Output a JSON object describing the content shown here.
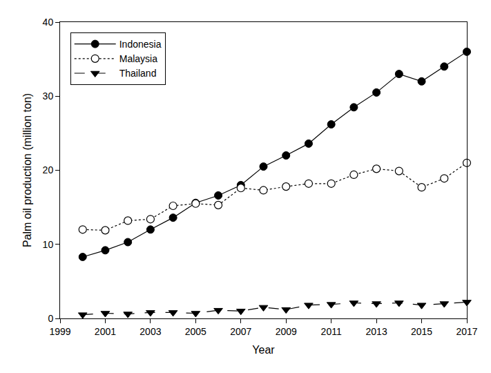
{
  "chart_data": {
    "type": "line",
    "x_label": "Year",
    "y_label": "Palm oil production (million ton)",
    "x": [
      2000,
      2001,
      2002,
      2003,
      2004,
      2005,
      2006,
      2007,
      2008,
      2009,
      2010,
      2011,
      2012,
      2013,
      2014,
      2015,
      2016,
      2017
    ],
    "series": [
      {
        "name": "Indonesia",
        "color": "#000000",
        "marker": "circle",
        "line_style": "solid",
        "values": [
          8.3,
          9.2,
          10.3,
          12.0,
          13.6,
          15.6,
          16.6,
          18.0,
          20.5,
          22.0,
          23.6,
          26.2,
          28.5,
          30.5,
          33.0,
          32.0,
          34.0,
          36.0
        ]
      },
      {
        "name": "Malaysia",
        "color": "#000000",
        "marker": "open_circle",
        "line_style": "dotted",
        "values": [
          12.0,
          11.9,
          13.2,
          13.4,
          15.2,
          15.5,
          15.3,
          17.6,
          17.3,
          17.8,
          18.2,
          18.2,
          19.4,
          20.2,
          19.9,
          17.7,
          18.9,
          21.0
        ]
      },
      {
        "name": "Thailand",
        "color": "#000000",
        "marker": "triangle_down",
        "line_style": "dashed",
        "values": [
          0.5,
          0.7,
          0.6,
          0.8,
          0.8,
          0.7,
          1.1,
          1.0,
          1.5,
          1.2,
          1.8,
          1.9,
          2.1,
          2.0,
          2.1,
          1.8,
          2.0,
          2.2
        ]
      }
    ],
    "xlim": [
      1999,
      2017
    ],
    "xticks": [
      1999,
      2001,
      2003,
      2005,
      2007,
      2009,
      2011,
      2013,
      2015,
      2017
    ],
    "ylim": [
      0,
      40
    ],
    "yticks": [
      0,
      10,
      20,
      30,
      40
    ],
    "grid": false,
    "legend": "upper left"
  }
}
